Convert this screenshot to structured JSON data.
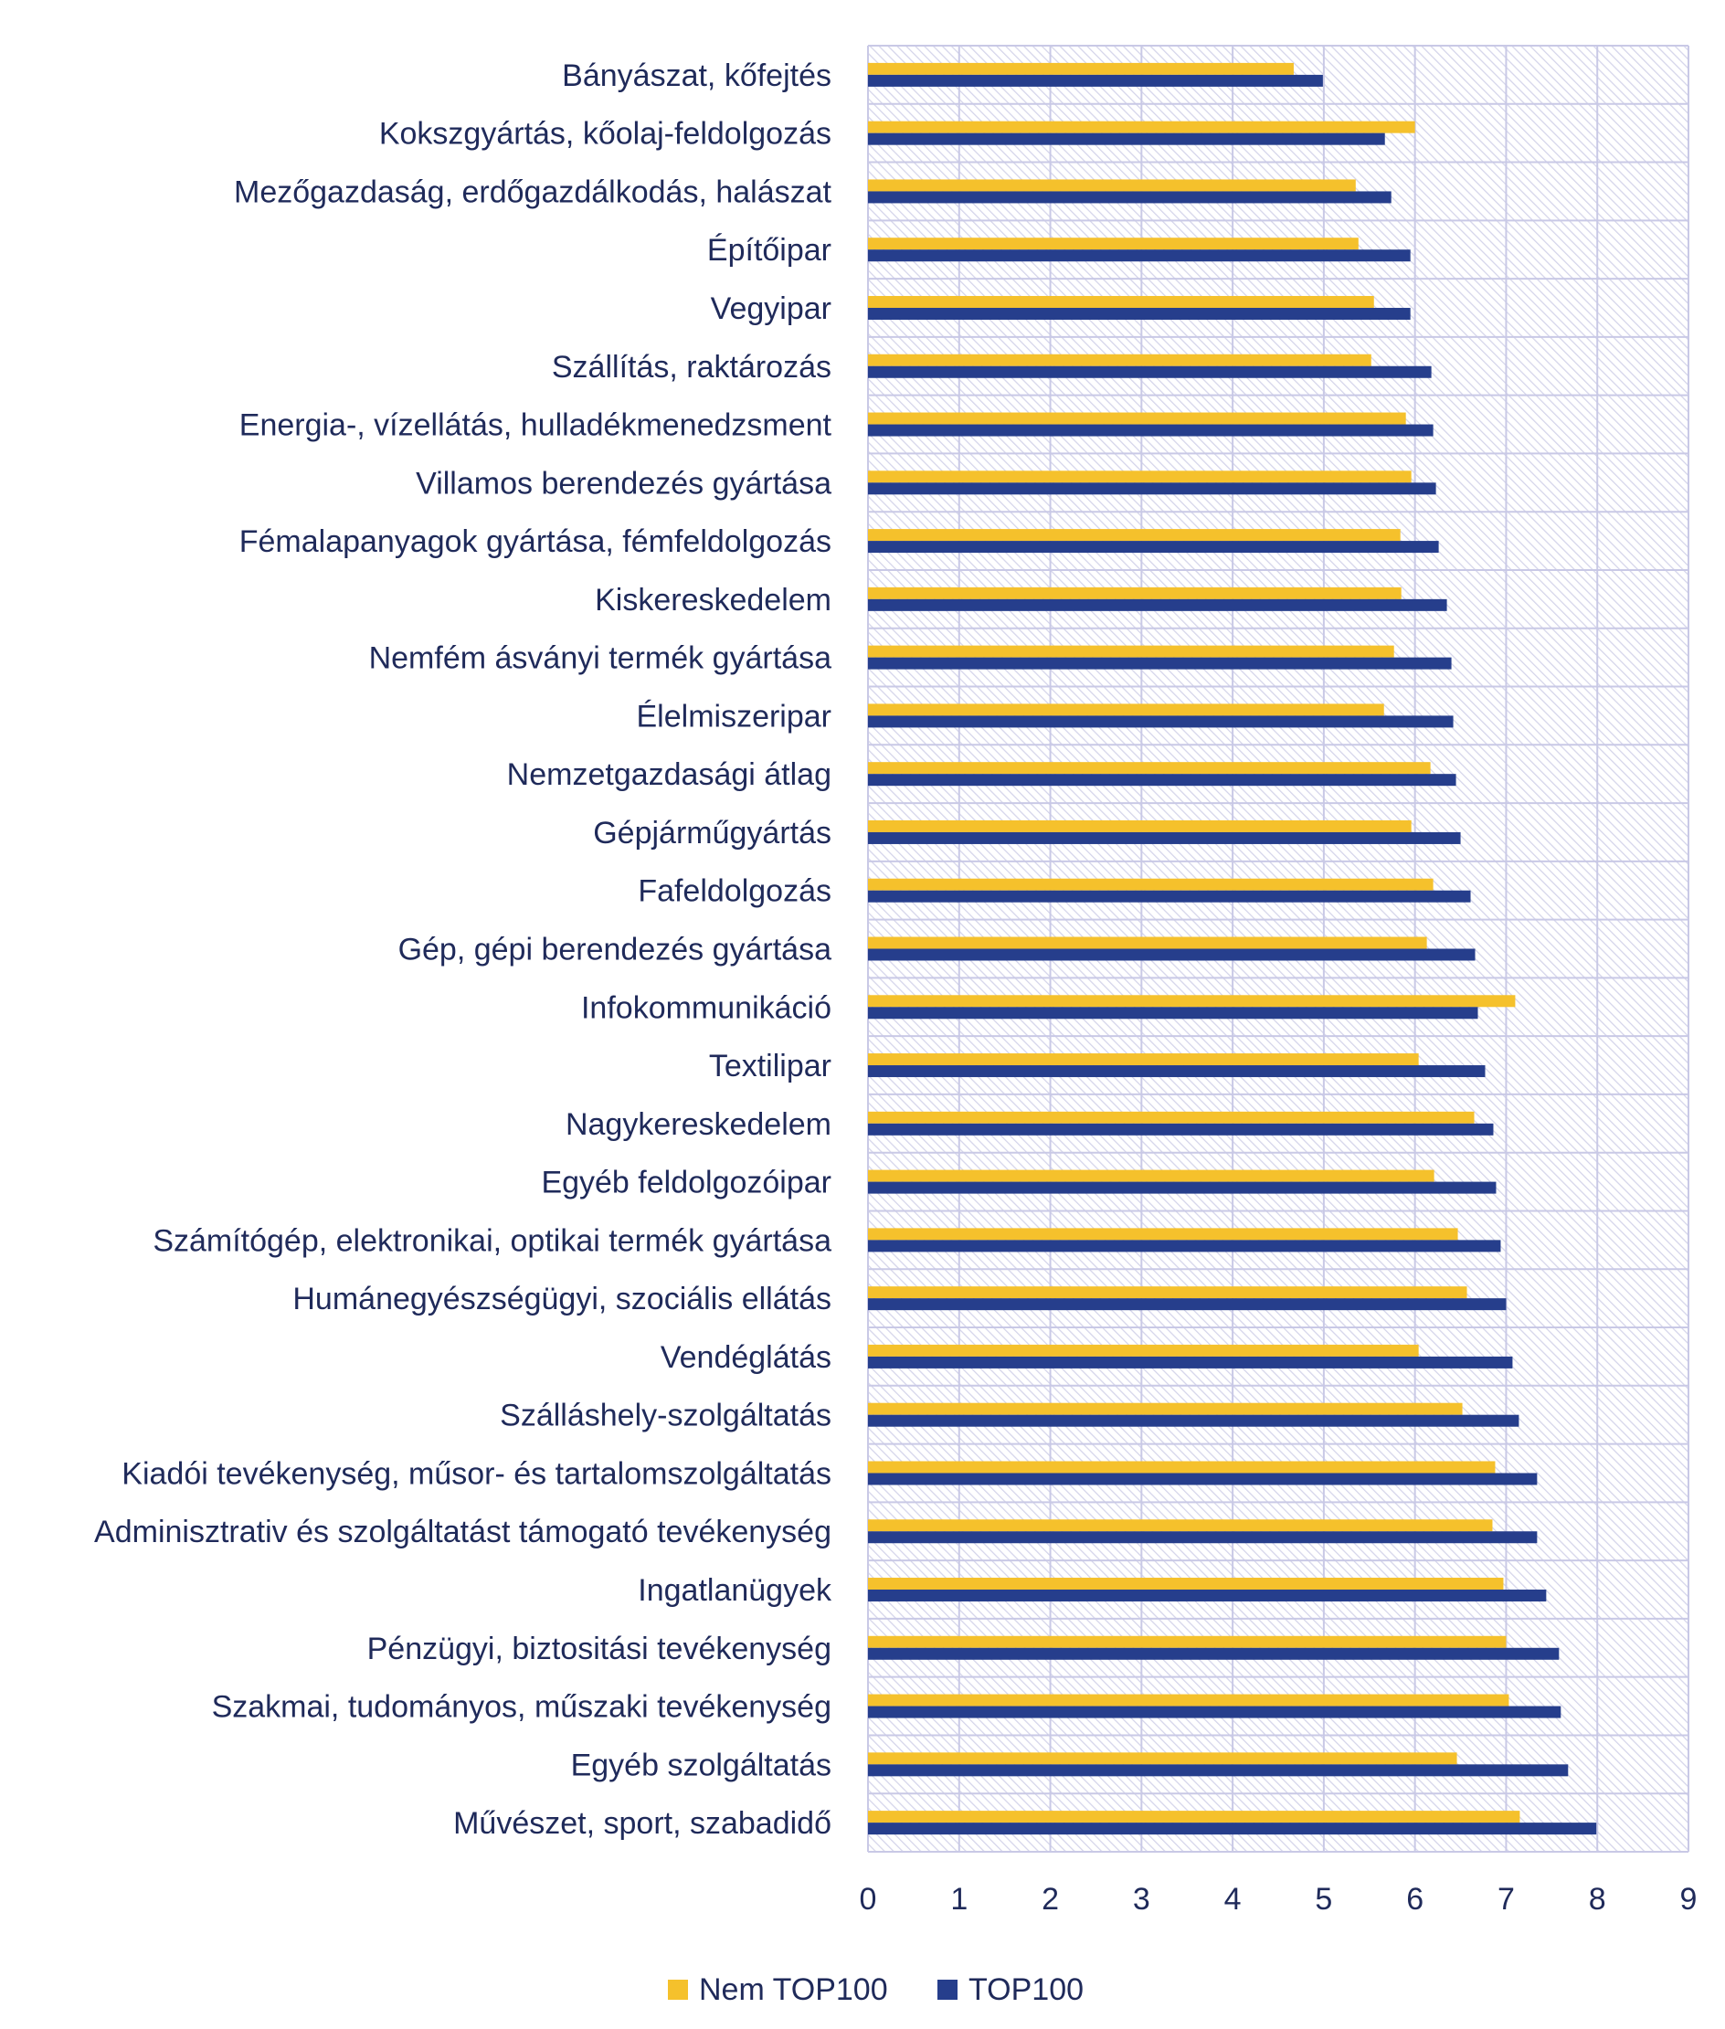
{
  "colors": {
    "series_nem": "#f5c12c",
    "series_top": "#263e8c",
    "grid": "#c9c9e6",
    "hatch": "#d4d4ea",
    "text": "#1f2a5a"
  },
  "chart_data": {
    "type": "bar",
    "orientation": "horizontal",
    "title": "",
    "xlabel": "",
    "ylabel": "",
    "xlim": [
      0,
      9
    ],
    "ticks": [
      "0",
      "1",
      "2",
      "3",
      "4",
      "5",
      "6",
      "7",
      "8",
      "9"
    ],
    "grid": true,
    "legend_position": "bottom",
    "categories": [
      "Bányászat, kőfejtés",
      "Kokszgyártás, kőolaj-feldolgozás",
      "Mezőgazdaság, erdőgazdálkodás, halászat",
      "Építőipar",
      "Vegyipar",
      "Szállítás, raktározás",
      "Energia-, vízellátás, hulladékmenedzsment",
      "Villamos berendezés gyártása",
      "Fémalapanyagok gyártása, fémfeldolgozás",
      "Kiskereskedelem",
      "Nemfém ásványi termék gyártása",
      "Élelmiszeripar",
      "Nemzetgazdasági átlag",
      "Gépjárműgyártás",
      "Fafeldolgozás",
      "Gép, gépi berendezés gyártása",
      "Infokommunikáció",
      "Textilipar",
      "Nagykereskedelem",
      "Egyéb feldolgozóipar",
      "Számítógép, elektronikai, optikai termék gyártása",
      "Humánegyészségügyi, szociális ellátás",
      "Vendéglátás",
      "Szálláshely-szolgáltatás",
      "Kiadói tevékenység, műsor- és tartalomszolgáltatás",
      "Adminisztrativ és szolgáltatást támogató tevékenység",
      "Ingatlanügyek",
      "Pénzügyi, biztositási tevékenység",
      "Szakmai, tudományos, műszaki tevékenység",
      "Egyéb szolgáltatás",
      "Művészet, sport, szabadidő"
    ],
    "series": [
      {
        "name": "Nem TOP100",
        "values": [
          4.67,
          6.0,
          5.35,
          5.38,
          5.55,
          5.52,
          5.9,
          5.96,
          5.84,
          5.85,
          5.77,
          5.66,
          6.17,
          5.96,
          6.2,
          6.13,
          7.1,
          6.04,
          6.65,
          6.21,
          6.47,
          6.57,
          6.04,
          6.52,
          6.88,
          6.85,
          6.97,
          7.0,
          7.03,
          6.46,
          7.15
        ]
      },
      {
        "name": "TOP100",
        "values": [
          4.99,
          5.67,
          5.74,
          5.95,
          5.95,
          6.18,
          6.2,
          6.23,
          6.26,
          6.35,
          6.4,
          6.42,
          6.45,
          6.5,
          6.61,
          6.66,
          6.69,
          6.77,
          6.86,
          6.89,
          6.94,
          7.0,
          7.07,
          7.14,
          7.34,
          7.34,
          7.44,
          7.58,
          7.6,
          7.68,
          7.99
        ]
      }
    ]
  }
}
